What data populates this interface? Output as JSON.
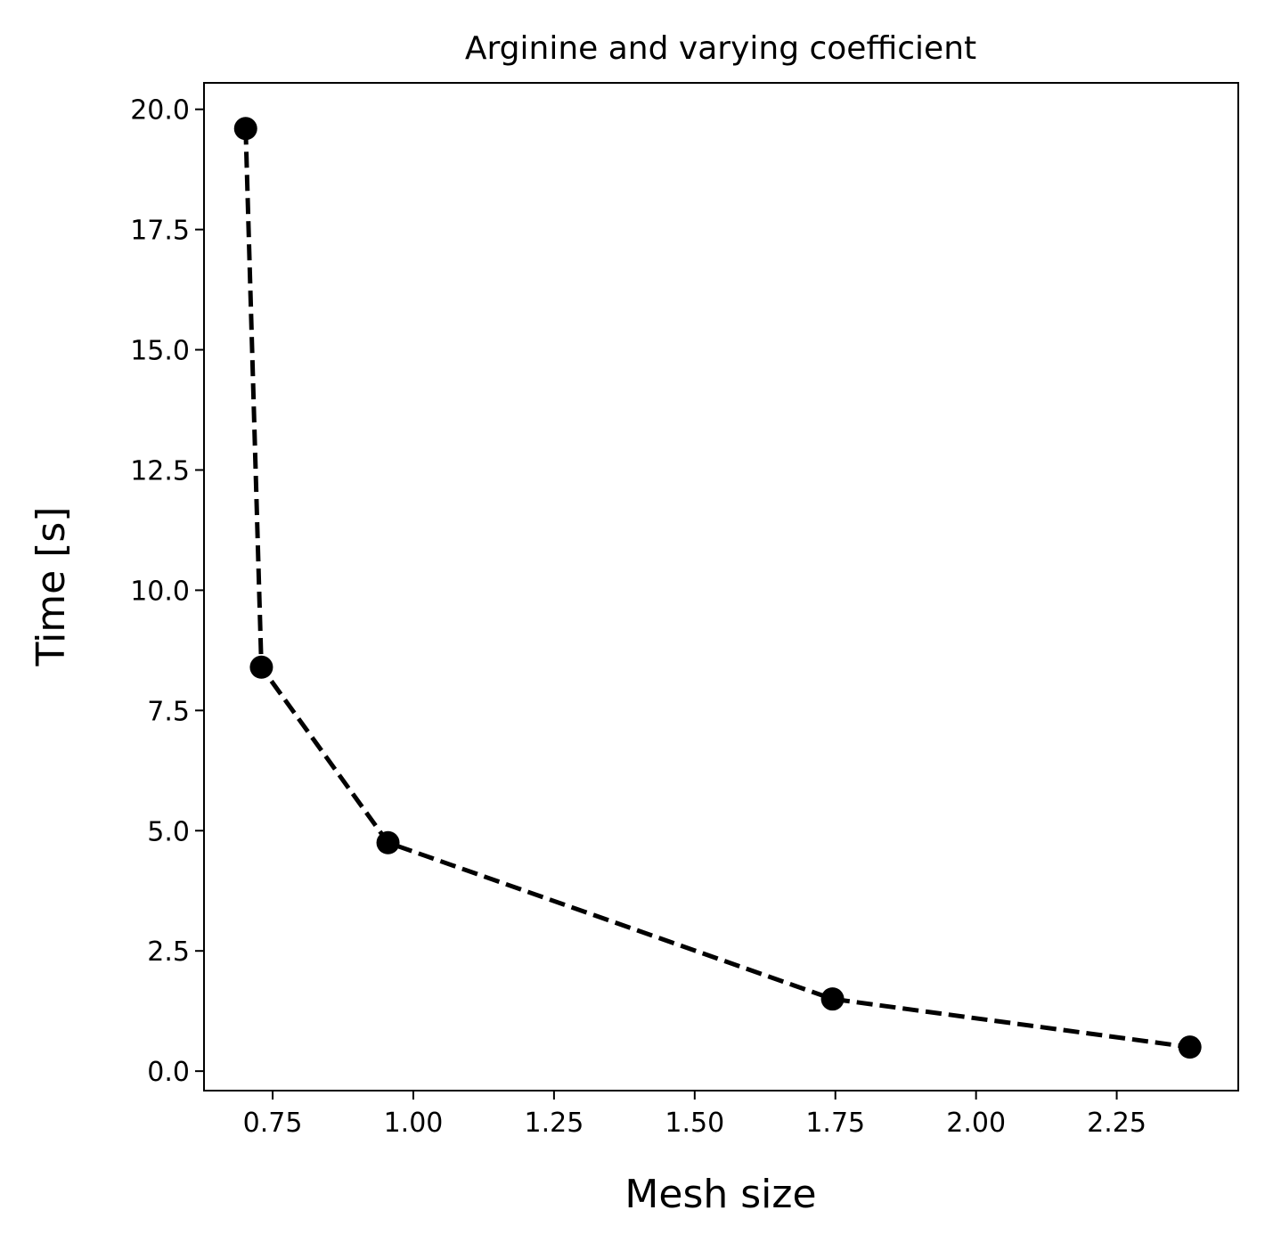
{
  "chart_data": {
    "type": "line",
    "title": "Arginine and varying coefficient",
    "xlabel": "Mesh size",
    "ylabel": "Time [s]",
    "xlim": [
      0.628,
      2.466
    ],
    "ylim": [
      -0.405,
      20.55
    ],
    "x_ticks": [
      0.75,
      1.0,
      1.25,
      1.5,
      1.75,
      2.0,
      2.25
    ],
    "x_tick_labels": [
      "0.75",
      "1.00",
      "1.25",
      "1.50",
      "1.75",
      "2.00",
      "2.25"
    ],
    "y_ticks": [
      0.0,
      2.5,
      5.0,
      7.5,
      10.0,
      12.5,
      15.0,
      17.5,
      20.0
    ],
    "y_tick_labels": [
      "0.0",
      "2.5",
      "5.0",
      "7.5",
      "10.0",
      "12.5",
      "15.0",
      "17.5",
      "20.0"
    ],
    "grid": false,
    "series": [
      {
        "x": [
          0.702,
          0.73,
          0.955,
          1.745,
          2.38
        ],
        "y": [
          19.6,
          8.4,
          4.75,
          1.5,
          0.5
        ],
        "color": "#000000",
        "line_style": "dashed",
        "marker": "circle"
      }
    ]
  }
}
